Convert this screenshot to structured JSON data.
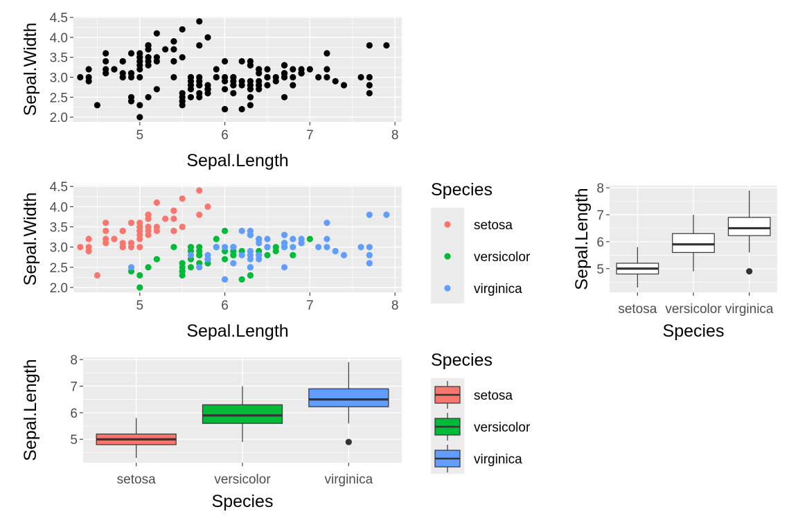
{
  "chart_data": [
    {
      "type": "scatter",
      "title": "",
      "xlabel": "Sepal.Length",
      "ylabel": "Sepal.Width",
      "xlim": [
        4.22,
        8.08
      ],
      "ylim": [
        1.88,
        4.52
      ],
      "xticks": [
        "5",
        "6",
        "7",
        "8"
      ],
      "yticks": [
        "2.0",
        "2.5",
        "3.0",
        "3.5",
        "4.0",
        "4.5"
      ],
      "grid": true,
      "point_color": "#000000",
      "series": [
        {
          "values": [
            [
              5.1,
              3.5
            ],
            [
              4.9,
              3.0
            ],
            [
              4.7,
              3.2
            ],
            [
              4.6,
              3.1
            ],
            [
              5.0,
              3.6
            ],
            [
              5.4,
              3.9
            ],
            [
              4.6,
              3.4
            ],
            [
              5.0,
              3.4
            ],
            [
              4.4,
              2.9
            ],
            [
              4.9,
              3.1
            ],
            [
              5.4,
              3.7
            ],
            [
              4.8,
              3.4
            ],
            [
              4.8,
              3.0
            ],
            [
              4.3,
              3.0
            ],
            [
              5.8,
              4.0
            ],
            [
              5.7,
              4.4
            ],
            [
              5.4,
              3.9
            ],
            [
              5.1,
              3.5
            ],
            [
              5.7,
              3.8
            ],
            [
              5.1,
              3.8
            ],
            [
              5.4,
              3.4
            ],
            [
              5.1,
              3.7
            ],
            [
              4.6,
              3.6
            ],
            [
              5.1,
              3.3
            ],
            [
              4.8,
              3.4
            ],
            [
              5.0,
              3.0
            ],
            [
              5.0,
              3.4
            ],
            [
              5.2,
              3.5
            ],
            [
              5.2,
              3.4
            ],
            [
              4.7,
              3.2
            ],
            [
              4.8,
              3.1
            ],
            [
              5.4,
              3.4
            ],
            [
              5.2,
              4.1
            ],
            [
              5.5,
              4.2
            ],
            [
              4.9,
              3.1
            ],
            [
              5.0,
              3.2
            ],
            [
              5.5,
              3.5
            ],
            [
              4.9,
              3.6
            ],
            [
              4.4,
              3.0
            ],
            [
              5.1,
              3.4
            ],
            [
              5.0,
              3.5
            ],
            [
              4.5,
              2.3
            ],
            [
              4.4,
              3.2
            ],
            [
              5.0,
              3.5
            ],
            [
              5.1,
              3.8
            ],
            [
              4.8,
              3.0
            ],
            [
              5.1,
              3.8
            ],
            [
              4.6,
              3.2
            ],
            [
              5.3,
              3.7
            ],
            [
              5.0,
              3.3
            ]
          ]
        },
        {
          "values": [
            [
              7.0,
              3.2
            ],
            [
              6.4,
              3.2
            ],
            [
              6.9,
              3.1
            ],
            [
              5.5,
              2.3
            ],
            [
              6.5,
              2.8
            ],
            [
              5.7,
              2.8
            ],
            [
              6.3,
              3.3
            ],
            [
              4.9,
              2.4
            ],
            [
              6.6,
              2.9
            ],
            [
              5.2,
              2.7
            ],
            [
              5.0,
              2.0
            ],
            [
              5.9,
              3.0
            ],
            [
              6.0,
              2.2
            ],
            [
              6.1,
              2.9
            ],
            [
              5.6,
              2.9
            ],
            [
              6.7,
              3.1
            ],
            [
              5.6,
              3.0
            ],
            [
              5.8,
              2.7
            ],
            [
              6.2,
              2.2
            ],
            [
              5.6,
              2.5
            ],
            [
              5.9,
              3.2
            ],
            [
              6.1,
              2.8
            ],
            [
              6.3,
              2.5
            ],
            [
              6.1,
              2.8
            ],
            [
              6.4,
              2.9
            ],
            [
              6.6,
              3.0
            ],
            [
              6.8,
              2.8
            ],
            [
              6.7,
              3.0
            ],
            [
              6.0,
              2.9
            ],
            [
              5.7,
              2.6
            ],
            [
              5.5,
              2.4
            ],
            [
              5.5,
              2.4
            ],
            [
              5.8,
              2.7
            ],
            [
              6.0,
              2.7
            ],
            [
              5.4,
              3.0
            ],
            [
              6.0,
              3.4
            ],
            [
              6.7,
              3.1
            ],
            [
              6.3,
              2.3
            ],
            [
              5.6,
              3.0
            ],
            [
              5.5,
              2.5
            ],
            [
              5.5,
              2.6
            ],
            [
              6.1,
              3.0
            ],
            [
              5.8,
              2.6
            ],
            [
              5.0,
              2.3
            ],
            [
              5.6,
              2.7
            ],
            [
              5.7,
              3.0
            ],
            [
              5.7,
              2.9
            ],
            [
              6.2,
              2.9
            ],
            [
              5.1,
              2.5
            ],
            [
              5.7,
              2.8
            ]
          ]
        },
        {
          "values": [
            [
              6.3,
              3.3
            ],
            [
              5.8,
              2.7
            ],
            [
              7.1,
              3.0
            ],
            [
              6.3,
              2.9
            ],
            [
              6.5,
              3.0
            ],
            [
              7.6,
              3.0
            ],
            [
              4.9,
              2.5
            ],
            [
              7.3,
              2.9
            ],
            [
              6.7,
              2.5
            ],
            [
              7.2,
              3.6
            ],
            [
              6.5,
              3.2
            ],
            [
              6.4,
              2.7
            ],
            [
              6.8,
              3.0
            ],
            [
              5.7,
              2.5
            ],
            [
              5.8,
              2.8
            ],
            [
              6.4,
              3.2
            ],
            [
              6.5,
              3.0
            ],
            [
              7.7,
              3.8
            ],
            [
              7.7,
              2.6
            ],
            [
              6.0,
              2.2
            ],
            [
              6.9,
              3.2
            ],
            [
              5.6,
              2.8
            ],
            [
              7.7,
              2.8
            ],
            [
              6.3,
              2.7
            ],
            [
              6.7,
              3.3
            ],
            [
              7.2,
              3.2
            ],
            [
              6.2,
              2.8
            ],
            [
              6.1,
              3.0
            ],
            [
              6.4,
              2.8
            ],
            [
              7.2,
              3.0
            ],
            [
              7.4,
              2.8
            ],
            [
              7.9,
              3.8
            ],
            [
              6.4,
              2.8
            ],
            [
              6.3,
              2.8
            ],
            [
              6.1,
              2.6
            ],
            [
              7.7,
              3.0
            ],
            [
              6.3,
              3.4
            ],
            [
              6.4,
              3.1
            ],
            [
              6.0,
              3.0
            ],
            [
              6.9,
              3.1
            ],
            [
              6.7,
              3.1
            ],
            [
              6.9,
              3.1
            ],
            [
              5.8,
              2.7
            ],
            [
              6.8,
              3.2
            ],
            [
              6.7,
              3.3
            ],
            [
              6.7,
              3.0
            ],
            [
              6.3,
              2.5
            ],
            [
              6.5,
              3.0
            ],
            [
              6.2,
              3.4
            ],
            [
              5.9,
              3.0
            ]
          ]
        }
      ]
    },
    {
      "type": "scatter",
      "title": "",
      "xlabel": "Sepal.Length",
      "ylabel": "Sepal.Width",
      "xlim": [
        4.22,
        8.08
      ],
      "ylim": [
        1.88,
        4.52
      ],
      "xticks": [
        "5",
        "6",
        "7",
        "8"
      ],
      "yticks": [
        "2.0",
        "2.5",
        "3.0",
        "3.5",
        "4.0",
        "4.5"
      ],
      "grid": true,
      "color_by": "Species",
      "legend": {
        "title": "Species",
        "placement": "right",
        "entries": [
          "setosa",
          "versicolor",
          "virginica"
        ]
      },
      "colors": [
        "#F8766D",
        "#00BA38",
        "#619CFF"
      ]
    },
    {
      "type": "box",
      "title": "",
      "xlabel": "Species",
      "ylabel": "Sepal.Length",
      "categories": [
        "setosa",
        "versicolor",
        "virginica"
      ],
      "ylim": [
        4.12,
        8.08
      ],
      "yticks": [
        "5",
        "6",
        "7",
        "8"
      ],
      "grid": true,
      "fill": "#ffffff",
      "boxes": [
        {
          "min": 4.3,
          "q1": 4.8,
          "median": 5.0,
          "q3": 5.2,
          "max": 5.8,
          "outliers": []
        },
        {
          "min": 4.9,
          "q1": 5.6,
          "median": 5.9,
          "q3": 6.3,
          "max": 7.0,
          "outliers": []
        },
        {
          "min": 5.6,
          "q1": 6.225,
          "median": 6.5,
          "q3": 6.9,
          "max": 7.9,
          "outliers": [
            4.9
          ]
        }
      ]
    },
    {
      "type": "box",
      "title": "",
      "xlabel": "Species",
      "ylabel": "Sepal.Length",
      "categories": [
        "setosa",
        "versicolor",
        "virginica"
      ],
      "ylim": [
        4.12,
        8.08
      ],
      "yticks": [
        "5",
        "6",
        "7",
        "8"
      ],
      "grid": true,
      "fill_by": "Species",
      "colors": [
        "#F8766D",
        "#00BA38",
        "#619CFF"
      ],
      "legend": {
        "title": "Species",
        "placement": "right",
        "entries": [
          "setosa",
          "versicolor",
          "virginica"
        ]
      }
    }
  ]
}
